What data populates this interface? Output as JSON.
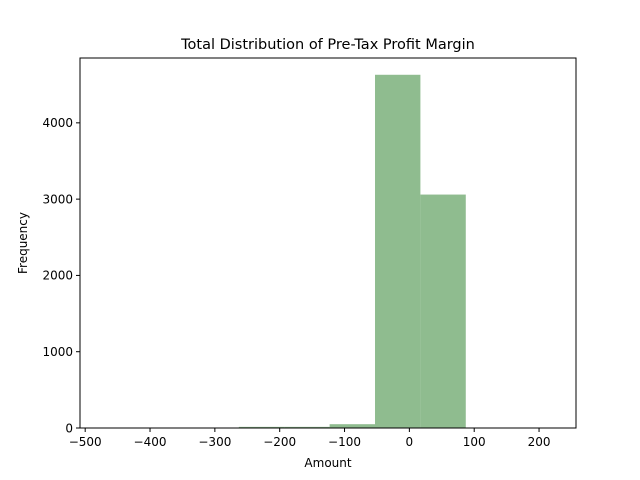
{
  "chart_data": {
    "type": "bar",
    "title": "Total Distribution of Pre-Tax Profit Margin",
    "xlabel": "Amount",
    "ylabel": "Frequency",
    "xlim": [
      -508,
      257
    ],
    "ylim": [
      0,
      4850
    ],
    "xticks": [
      -500,
      -400,
      -300,
      -200,
      -100,
      0,
      100,
      200
    ],
    "xtick_labels": [
      "−500",
      "−400",
      "−300",
      "−200",
      "−100",
      "0",
      "100",
      "200"
    ],
    "yticks": [
      0,
      1000,
      2000,
      3000,
      4000
    ],
    "ytick_labels": [
      "0",
      "1000",
      "2000",
      "3000",
      "4000"
    ],
    "bins": [
      {
        "x0": -473,
        "x1": -403,
        "value": 0
      },
      {
        "x0": -403,
        "x1": -333,
        "value": 0
      },
      {
        "x0": -333,
        "x1": -263,
        "value": 0
      },
      {
        "x0": -263,
        "x1": -193,
        "value": 15
      },
      {
        "x0": -193,
        "x1": -123,
        "value": 15
      },
      {
        "x0": -123,
        "x1": -53,
        "value": 50
      },
      {
        "x0": -53,
        "x1": 17,
        "value": 4630
      },
      {
        "x0": 17,
        "x1": 87,
        "value": 3060
      },
      {
        "x0": 87,
        "x1": 157,
        "value": 0
      },
      {
        "x0": 157,
        "x1": 227,
        "value": 0
      }
    ],
    "bar_color": "#8fbc8f",
    "grid": false,
    "legend": false
  }
}
